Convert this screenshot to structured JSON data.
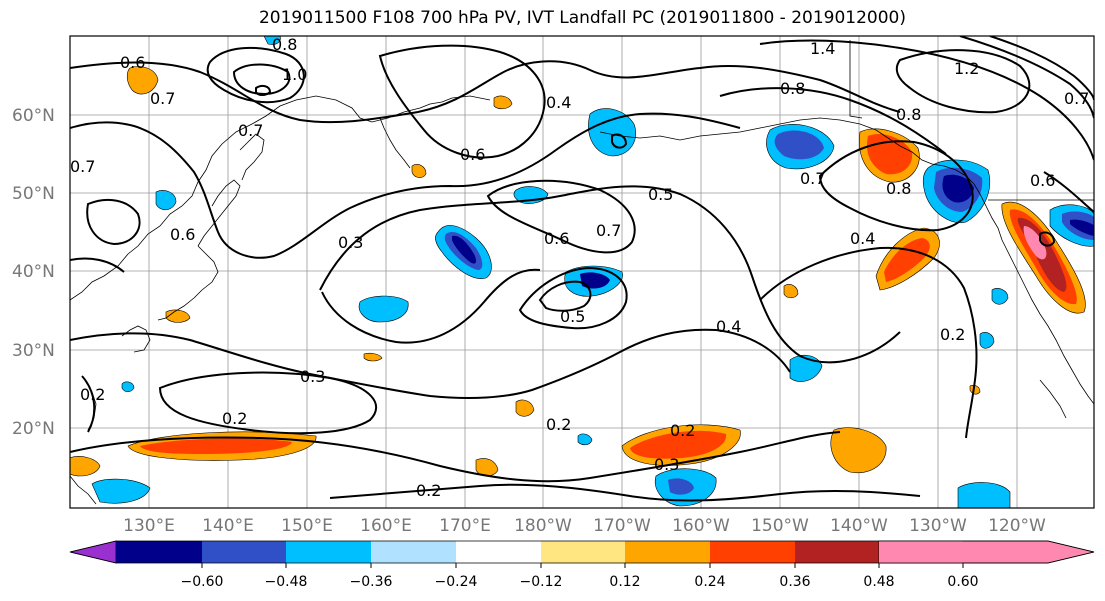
{
  "title": "2019011500 F108 700 hPa PV, IVT Landfall PC (2019011800 - 2019012000)",
  "lat_labels": [
    "60°N",
    "50°N",
    "40°N",
    "30°N",
    "20°N"
  ],
  "lon_labels": [
    "130°E",
    "140°E",
    "150°E",
    "160°E",
    "170°E",
    "180°W",
    "170°W",
    "160°W",
    "150°W",
    "140°W",
    "130°W",
    "120°W"
  ],
  "contour_labels": [
    "0.6",
    "0.7",
    "0.8",
    "1.0",
    "0.7",
    "0.4",
    "0.6",
    "0.8",
    "0.7",
    "0.8",
    "1.4",
    "1.2",
    "0.6",
    "0.3",
    "0.7",
    "0.6",
    "0.7",
    "0.5",
    "0.5",
    "0.4",
    "0.8",
    "0.4",
    "0.2",
    "0.3",
    "0.2",
    "0.2",
    "0.2",
    "0.3",
    "0.2",
    "0.6",
    "0.2",
    "0.7"
  ],
  "colorbar": {
    "ticks": [
      "−0.60",
      "−0.48",
      "−0.36",
      "−0.24",
      "−0.12",
      "0.12",
      "0.24",
      "0.36",
      "0.48",
      "0.60"
    ],
    "colors": [
      "#9b30d0",
      "#00008b",
      "#3050c8",
      "#00bfff",
      "#b0e2ff",
      "#ffffff",
      "#ffe680",
      "#ffa500",
      "#ff4000",
      "#b22222",
      "#ff88b0"
    ]
  }
}
